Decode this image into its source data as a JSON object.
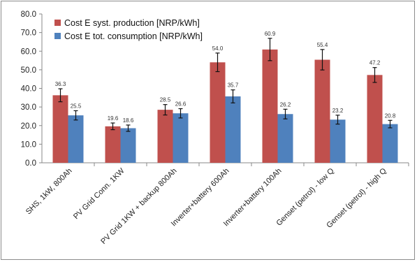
{
  "chart_data": {
    "type": "bar",
    "categories": [
      "SHS, 1kW, 800Ah",
      "PV Grid Conn. 1KW",
      "PV Grid 1KW + backup 800Ah",
      "Inverter+battery 600Ah",
      "Inverter+battery 100Ah",
      "Genset (petrol) - low Q",
      "Genset (petrol) - high Q"
    ],
    "series": [
      {
        "name": "Cost E syst. production [NRP/kWh]",
        "color": "#c0504d",
        "values": [
          36.3,
          19.6,
          28.5,
          54.0,
          60.9,
          55.4,
          47.2
        ],
        "labels": [
          "36.3",
          "19.6",
          "28.5",
          "54.0",
          "60.9",
          "55.4",
          "47.2"
        ],
        "errors": [
          3.5,
          1.8,
          2.8,
          5.0,
          6.0,
          5.5,
          4.0
        ]
      },
      {
        "name": "Cost E tot. consumption [NRP/kWh]",
        "color": "#4f81bd",
        "values": [
          25.5,
          18.6,
          26.6,
          35.7,
          26.2,
          23.2,
          20.8
        ],
        "labels": [
          "25.5",
          "18.6",
          "26.6",
          "35.7",
          "26.2",
          "23.2",
          "20.8"
        ],
        "errors": [
          2.5,
          1.7,
          2.5,
          3.5,
          2.6,
          2.4,
          2.0
        ]
      }
    ],
    "ylim": [
      0,
      80
    ],
    "yticks": [
      "0.0",
      "10.0",
      "20.0",
      "30.0",
      "40.0",
      "50.0",
      "60.0",
      "70.0",
      "80.0"
    ],
    "title": "",
    "xlabel": "",
    "ylabel": "",
    "grid": false,
    "legend_position": "top-left"
  }
}
